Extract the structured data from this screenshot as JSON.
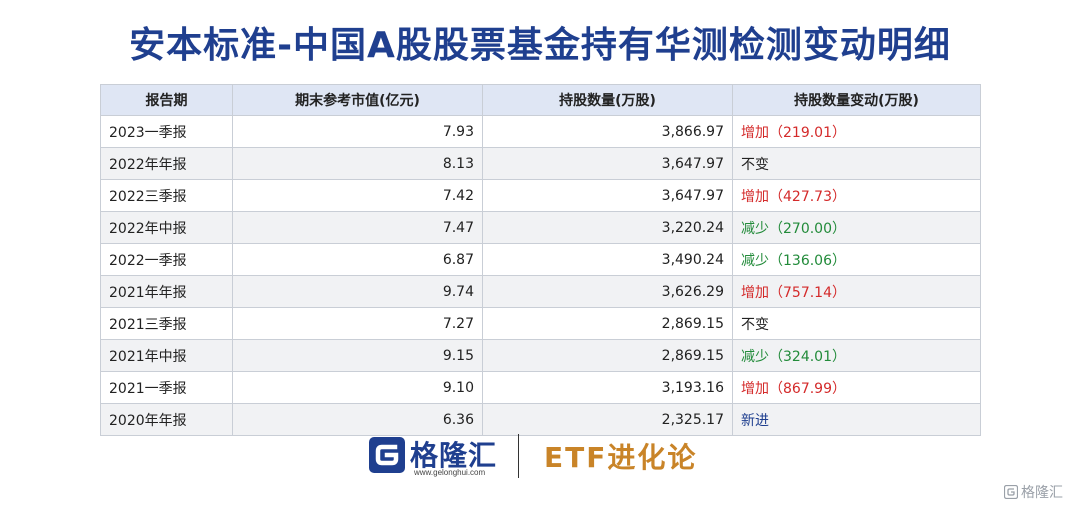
{
  "title": "安本标准-中国A股股票基金持有华测检测变动明细",
  "table": {
    "headers": [
      "报告期",
      "期末参考市值(亿元)",
      "持股数量(万股)",
      "持股数量变动(万股)"
    ],
    "rows": [
      {
        "period": "2023一季报",
        "value": "7.93",
        "shares": "3,866.97",
        "change": "增加（219.01）",
        "type": "inc"
      },
      {
        "period": "2022年年报",
        "value": "8.13",
        "shares": "3,647.97",
        "change": "不变",
        "type": "none"
      },
      {
        "period": "2022三季报",
        "value": "7.42",
        "shares": "3,647.97",
        "change": "增加（427.73）",
        "type": "inc"
      },
      {
        "period": "2022年中报",
        "value": "7.47",
        "shares": "3,220.24",
        "change": "减少（270.00）",
        "type": "dec"
      },
      {
        "period": "2022一季报",
        "value": "6.87",
        "shares": "3,490.24",
        "change": "减少（136.06）",
        "type": "dec"
      },
      {
        "period": "2021年年报",
        "value": "9.74",
        "shares": "3,626.29",
        "change": "增加（757.14）",
        "type": "inc"
      },
      {
        "period": "2021三季报",
        "value": "7.27",
        "shares": "2,869.15",
        "change": "不变",
        "type": "none"
      },
      {
        "period": "2021年中报",
        "value": "9.15",
        "shares": "2,869.15",
        "change": "减少（324.01）",
        "type": "dec"
      },
      {
        "period": "2021一季报",
        "value": "9.10",
        "shares": "3,193.16",
        "change": "增加（867.99）",
        "type": "inc"
      },
      {
        "period": "2020年年报",
        "value": "6.36",
        "shares": "2,325.17",
        "change": "新进",
        "type": "new"
      }
    ]
  },
  "footer": {
    "logo_name": "格隆汇",
    "logo_url": "www.gelonghui.com",
    "brand": "ETF进化论"
  },
  "watermark": "格隆汇",
  "colors": {
    "title": "#1f3f8f",
    "increase": "#d42a2a",
    "decrease": "#228b3a",
    "new": "#1f3f8f",
    "brand": "#c98428",
    "header_bg": "#dfe6f4"
  }
}
